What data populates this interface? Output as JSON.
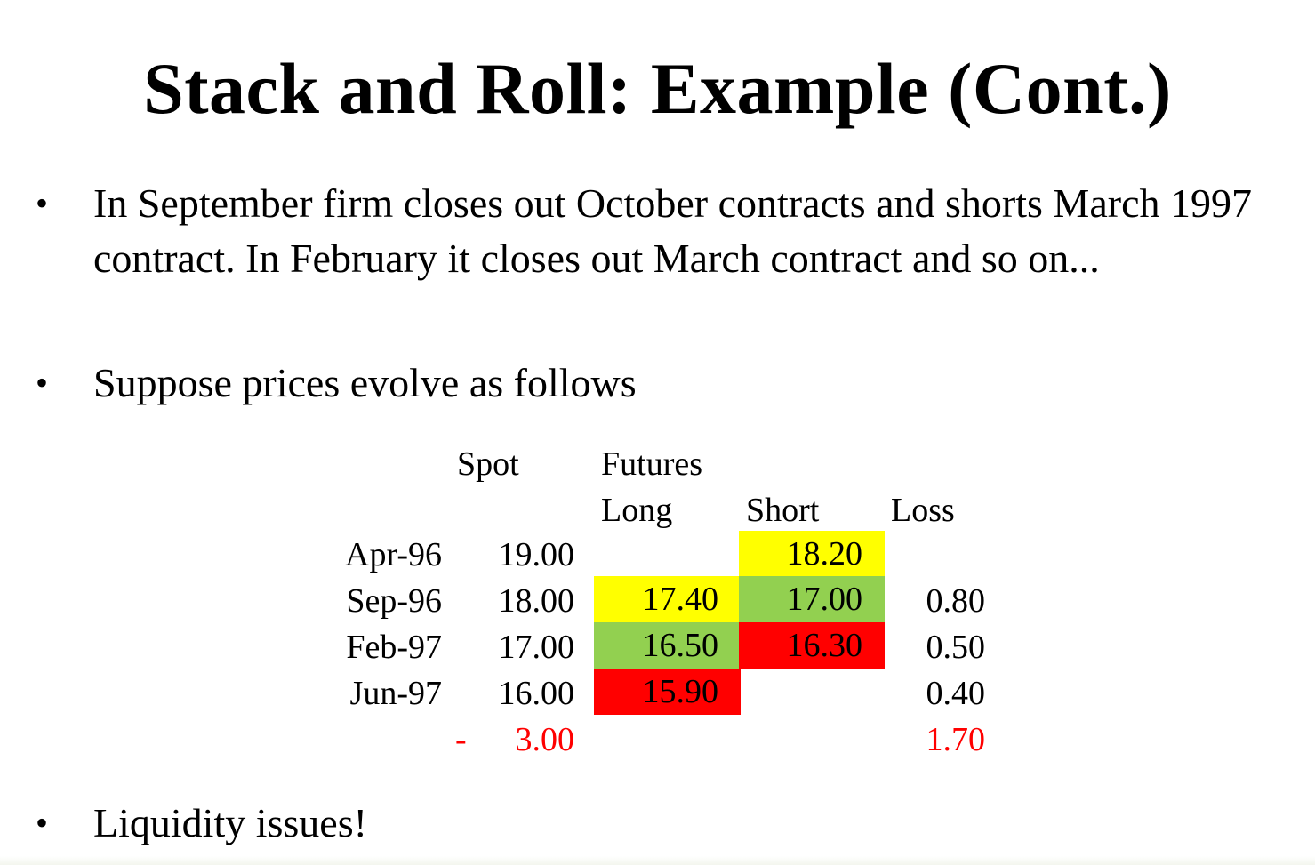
{
  "title": "Stack and Roll: Example (Cont.)",
  "bullets": [
    {
      "marker": "•",
      "text": "In September firm closes out October contracts and shorts March 1997 contract. In February it closes out March contract and so on..."
    },
    {
      "marker": "•",
      "text": "Suppose prices evolve as follows"
    },
    {
      "marker": "•",
      "text": "Liquidity issues!"
    }
  ],
  "table": {
    "headers": {
      "spot": "Spot",
      "futures": "Futures",
      "long": "Long",
      "short": "Short",
      "loss": "Loss"
    },
    "rows": [
      {
        "date": "Apr-96",
        "spot": "19.00",
        "long": "",
        "short": "18.20",
        "loss": ""
      },
      {
        "date": "Sep-96",
        "spot": "18.00",
        "long": "17.40",
        "short": "17.00",
        "loss": "0.80"
      },
      {
        "date": "Feb-97",
        "spot": "17.00",
        "long": "16.50",
        "short": "16.30",
        "loss": "0.50"
      },
      {
        "date": "Jun-97",
        "spot": "16.00",
        "long": "15.90",
        "short": "",
        "loss": "0.40"
      }
    ],
    "totals": {
      "spot_sign": "-",
      "spot": "3.00",
      "loss": "1.70"
    }
  },
  "colors": {
    "yellow": "#ffff00",
    "green": "#92d050",
    "red": "#ff0000",
    "total_text": "#ff0000"
  }
}
